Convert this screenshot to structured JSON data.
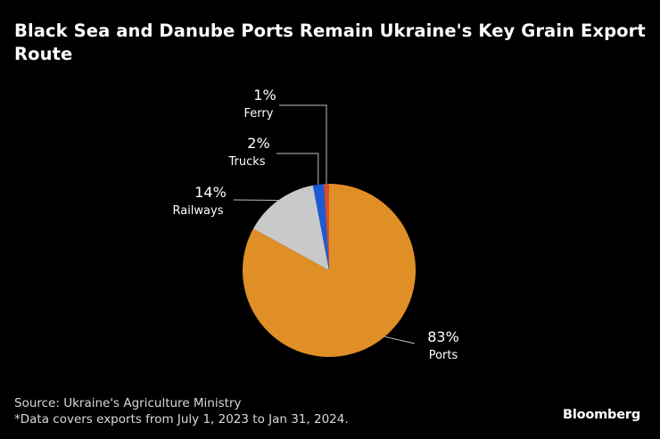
{
  "chart_data": {
    "type": "pie",
    "title": "Black Sea and Danube Ports Remain Ukraine's Key Grain Export Route",
    "series": [
      {
        "name": "Ports",
        "value": 83,
        "label": "83%",
        "color": "#e08f27"
      },
      {
        "name": "Railways",
        "value": 14,
        "label": "14%",
        "color": "#c9c9c9"
      },
      {
        "name": "Trucks",
        "value": 2,
        "label": "2%",
        "color": "#1c5bd8"
      },
      {
        "name": "Ferry",
        "value": 1,
        "label": "1%",
        "color": "#d4502a"
      }
    ],
    "units": "%"
  },
  "footer": {
    "source": "Source: Ukraine's Agriculture Ministry",
    "note": "*Data covers exports from July 1, 2023 to Jan 31, 2024."
  },
  "brand": "Bloomberg",
  "colors": {
    "background": "#000000",
    "text": "#ffffff",
    "leader": "#bfbfbf"
  }
}
